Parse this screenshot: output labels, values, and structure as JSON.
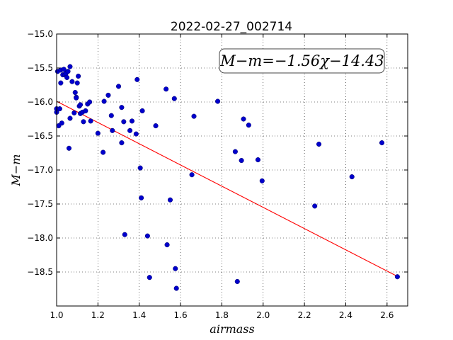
{
  "chart_data": {
    "type": "scatter",
    "title": "2022-02-27_002714",
    "xlabel": "airmass",
    "ylabel": "M−m",
    "xlim": [
      1.0,
      2.7
    ],
    "ylim": [
      -15.0,
      -19.0
    ],
    "y_inverted": true,
    "grid": true,
    "x_ticks": [
      "1.0",
      "1.2",
      "1.4",
      "1.6",
      "1.8",
      "2.0",
      "2.2",
      "2.4",
      "2.6"
    ],
    "y_ticks": [
      "−15.0",
      "−15.5",
      "−16.0",
      "−16.5",
      "−17.0",
      "−17.5",
      "−18.0",
      "−18.5"
    ],
    "annotation": "M−m=−1.56χ−14.43",
    "fit": {
      "slope": -1.56,
      "intercept": -14.43,
      "color": "#ff0000"
    },
    "point_color": "#0000cc",
    "points": [
      [
        1.0,
        -16.15
      ],
      [
        1.0,
        -16.1
      ],
      [
        1.005,
        -15.55
      ],
      [
        1.01,
        -16.35
      ],
      [
        1.015,
        -16.1
      ],
      [
        1.02,
        -15.53
      ],
      [
        1.02,
        -15.72
      ],
      [
        1.025,
        -16.31
      ],
      [
        1.03,
        -15.6
      ],
      [
        1.035,
        -15.52
      ],
      [
        1.04,
        -15.6
      ],
      [
        1.045,
        -15.58
      ],
      [
        1.05,
        -15.64
      ],
      [
        1.055,
        -15.55
      ],
      [
        1.06,
        -16.68
      ],
      [
        1.065,
        -15.48
      ],
      [
        1.065,
        -16.24
      ],
      [
        1.075,
        -15.7
      ],
      [
        1.085,
        -16.16
      ],
      [
        1.09,
        -15.86
      ],
      [
        1.095,
        -15.93
      ],
      [
        1.095,
        -15.94
      ],
      [
        1.1,
        -15.72
      ],
      [
        1.105,
        -15.62
      ],
      [
        1.11,
        -16.06
      ],
      [
        1.115,
        -16.17
      ],
      [
        1.115,
        -16.04
      ],
      [
        1.125,
        -16.15
      ],
      [
        1.13,
        -16.29
      ],
      [
        1.14,
        -16.13
      ],
      [
        1.15,
        -16.03
      ],
      [
        1.16,
        -16.0
      ],
      [
        1.165,
        -16.28
      ],
      [
        1.2,
        -16.46
      ],
      [
        1.225,
        -16.74
      ],
      [
        1.23,
        -15.99
      ],
      [
        1.25,
        -15.9
      ],
      [
        1.265,
        -16.2
      ],
      [
        1.27,
        -16.42
      ],
      [
        1.3,
        -15.77
      ],
      [
        1.315,
        -16.08
      ],
      [
        1.315,
        -16.6
      ],
      [
        1.325,
        -16.29
      ],
      [
        1.33,
        -17.95
      ],
      [
        1.355,
        -16.42
      ],
      [
        1.365,
        -16.28
      ],
      [
        1.385,
        -16.47
      ],
      [
        1.39,
        -15.67
      ],
      [
        1.405,
        -16.97
      ],
      [
        1.41,
        -17.41
      ],
      [
        1.415,
        -16.13
      ],
      [
        1.44,
        -17.97
      ],
      [
        1.45,
        -18.58
      ],
      [
        1.48,
        -16.35
      ],
      [
        1.53,
        -15.81
      ],
      [
        1.535,
        -18.1
      ],
      [
        1.55,
        -17.44
      ],
      [
        1.57,
        -15.95
      ],
      [
        1.575,
        -18.45
      ],
      [
        1.58,
        -18.74
      ],
      [
        1.655,
        -17.07
      ],
      [
        1.665,
        -16.21
      ],
      [
        1.78,
        -15.99
      ],
      [
        1.865,
        -16.73
      ],
      [
        1.875,
        -18.64
      ],
      [
        1.895,
        -16.86
      ],
      [
        1.905,
        -16.25
      ],
      [
        1.93,
        -16.34
      ],
      [
        1.975,
        -16.85
      ],
      [
        1.995,
        -17.16
      ],
      [
        2.25,
        -17.53
      ],
      [
        2.27,
        -16.62
      ],
      [
        2.43,
        -17.1
      ],
      [
        2.575,
        -16.6
      ],
      [
        2.65,
        -18.57
      ]
    ]
  }
}
